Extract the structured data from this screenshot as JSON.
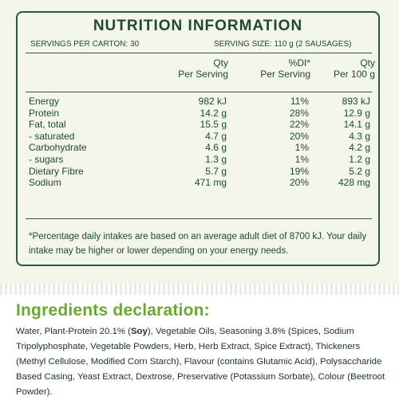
{
  "nutrition": {
    "title": "NUTRITION INFORMATION",
    "servings_per_carton": "SERVINGS PER CARTON: 30",
    "serving_size": "SERVING SIZE: 110 g (2 SAUSAGES)",
    "col_serving": "Qty\nPer Serving",
    "col_di": "%DI*\nPer Serving",
    "col_100g": "Qty\nPer 100 g",
    "rows": [
      {
        "label": "Energy",
        "per_serving": "982 kJ",
        "di": "11%",
        "per_100g": "893 kJ"
      },
      {
        "label": "Protein",
        "per_serving": "14.2 g",
        "di": "28%",
        "per_100g": "12.9 g"
      },
      {
        "label": "Fat, total",
        "per_serving": "15.5 g",
        "di": "22%",
        "per_100g": "14.1 g"
      },
      {
        "label": "- saturated",
        "per_serving": "4.7 g",
        "di": "20%",
        "per_100g": "4.3 g"
      },
      {
        "label": "Carbohydrate",
        "per_serving": "4.6 g",
        "di": "1%",
        "per_100g": "4.2 g"
      },
      {
        "label": "- sugars",
        "per_serving": "1.3 g",
        "di": "1%",
        "per_100g": "1.2 g"
      },
      {
        "label": "Dietary Fibre",
        "per_serving": "5.7 g",
        "di": "19%",
        "per_100g": "5.2 g"
      },
      {
        "label": "Sodium",
        "per_serving": "471 mg",
        "di": "20%",
        "per_100g": "428 mg"
      }
    ],
    "footnote": "*Percentage daily intakes are based on an average adult diet of 8700 kJ. Your daily intake may be higher or lower depending on your energy needs."
  },
  "ingredients": {
    "title": "Ingredients declaration:",
    "text_before": "Water, Plant-Protein 20.1% (",
    "allergen": "Soy",
    "text_after": "), Vegetable Oils, Seasoning 3.8% (Spices, Sodium Tripolyphosphate, Vegetable Powders, Herb, Herb Extract, Spice Extract), Thickeners (Methyl Cellulose, Modified Corn Starch), Flavour (contains Glutamic Acid), Polysaccharide Based Casing, Yeast Extract, Dextrose, Preservative (Potassium Sorbate), Colour (Beetroot Powder)."
  },
  "colors": {
    "panel_background": "#f3f6e9",
    "border": "#2b5a39",
    "heading_green": "#6aa832"
  }
}
